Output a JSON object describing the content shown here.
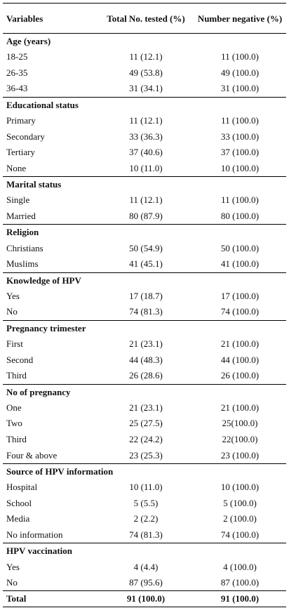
{
  "header": {
    "col1": "Variables",
    "col2": "Total No. tested (%)",
    "col3": "Number negative (%)"
  },
  "groups": [
    {
      "title": "Age (years)",
      "rows": [
        [
          "18-25",
          "11 (12.1)",
          "11 (100.0)"
        ],
        [
          "26-35",
          "49 (53.8)",
          "49 (100.0)"
        ],
        [
          "36-43",
          "31 (34.1)",
          "31 (100.0)"
        ]
      ]
    },
    {
      "title": "Educational status",
      "rows": [
        [
          "Primary",
          "11 (12.1)",
          "11 (100.0)"
        ],
        [
          "Secondary",
          "33 (36.3)",
          "33 (100.0)"
        ],
        [
          "Tertiary",
          "37 (40.6)",
          "37 (100.0)"
        ],
        [
          "None",
          "10 (11.0)",
          "10 (100.0)"
        ]
      ]
    },
    {
      "title": "Marital status",
      "rows": [
        [
          "Single",
          "11 (12.1)",
          "11 (100.0)"
        ],
        [
          "Married",
          "80 (87.9)",
          "80 (100.0)"
        ]
      ]
    },
    {
      "title": "Religion",
      "rows": [
        [
          "Christians",
          "50 (54.9)",
          "50 (100.0)"
        ],
        [
          "Muslims",
          "41 (45.1)",
          "41 (100.0)"
        ]
      ]
    },
    {
      "title": "Knowledge of HPV",
      "rows": [
        [
          "Yes",
          "17 (18.7)",
          "17 (100.0)"
        ],
        [
          "No",
          "74 (81.3)",
          "74 (100.0)"
        ]
      ]
    },
    {
      "title": "Pregnancy trimester",
      "rows": [
        [
          "First",
          "21 (23.1)",
          "21 (100.0)"
        ],
        [
          "Second",
          "44 (48.3)",
          "44 (100.0)"
        ],
        [
          "Third",
          "26 (28.6)",
          "26 (100.0)"
        ]
      ]
    },
    {
      "title": "No of pregnancy",
      "rows": [
        [
          "One",
          "21 (23.1)",
          "21 (100.0)"
        ],
        [
          "Two",
          "25 (27.5)",
          "25(100.0)"
        ],
        [
          "Third",
          "22 (24.2)",
          "22(100.0)"
        ],
        [
          "Four & above",
          "23 (25.3)",
          "23 (100.0)"
        ]
      ]
    },
    {
      "title": "Source of HPV information",
      "rows": [
        [
          "Hospital",
          "10 (11.0)",
          "10 (100.0)"
        ],
        [
          "School",
          "5 (5.5)",
          "5 (100.0)"
        ],
        [
          "Media",
          "2 (2.2)",
          "2 (100.0)"
        ],
        [
          "No information",
          "74 (81.3)",
          "74 (100.0)"
        ]
      ]
    },
    {
      "title": "HPV vaccination",
      "rows": [
        [
          "Yes",
          "4 (4.4)",
          "4 (100.0)"
        ],
        [
          "No",
          "87 (95.6)",
          "87 (100.0)"
        ]
      ]
    }
  ],
  "total": [
    "Total",
    "91 (100.0)",
    "91 (100.0)"
  ]
}
